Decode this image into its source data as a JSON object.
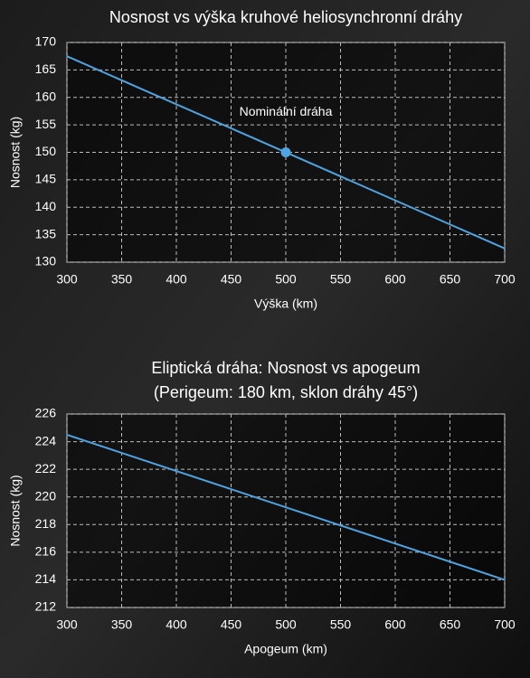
{
  "chart_data": [
    {
      "type": "line",
      "title": "Nosnost vs výška kruhové heliosynchronní dráhy",
      "xlabel": "Výška (km)",
      "ylabel": "Nosnost (kg)",
      "x": [
        300,
        700
      ],
      "series": [
        {
          "color": "#4ea3e0",
          "values": [
            167.5,
            132.5
          ]
        }
      ],
      "points": [
        {
          "x": 500,
          "y": 150,
          "label": "Nominální dráha",
          "color": "#4ea3e0"
        }
      ],
      "xlim": [
        300,
        700
      ],
      "xticks": [
        300,
        350,
        400,
        450,
        500,
        550,
        600,
        650,
        700
      ],
      "ylim": [
        130,
        170
      ],
      "yticks": [
        130,
        135,
        140,
        145,
        150,
        155,
        160,
        165,
        170
      ],
      "grid": true
    },
    {
      "type": "line",
      "title": "Eliptická dráha: Nosnost vs apogeum",
      "subtitle": "(Perigeum: 180 km, sklon dráhy 45°)",
      "xlabel": "Apogeum (km)",
      "ylabel": "Nosnost (kg)",
      "x": [
        300,
        700
      ],
      "series": [
        {
          "color": "#4ea3e0",
          "values": [
            224.5,
            214
          ]
        }
      ],
      "xlim": [
        300,
        700
      ],
      "xticks": [
        300,
        350,
        400,
        450,
        500,
        550,
        600,
        650,
        700
      ],
      "ylim": [
        212,
        226
      ],
      "yticks": [
        212,
        214,
        216,
        218,
        220,
        222,
        224,
        226
      ],
      "grid": true
    }
  ]
}
